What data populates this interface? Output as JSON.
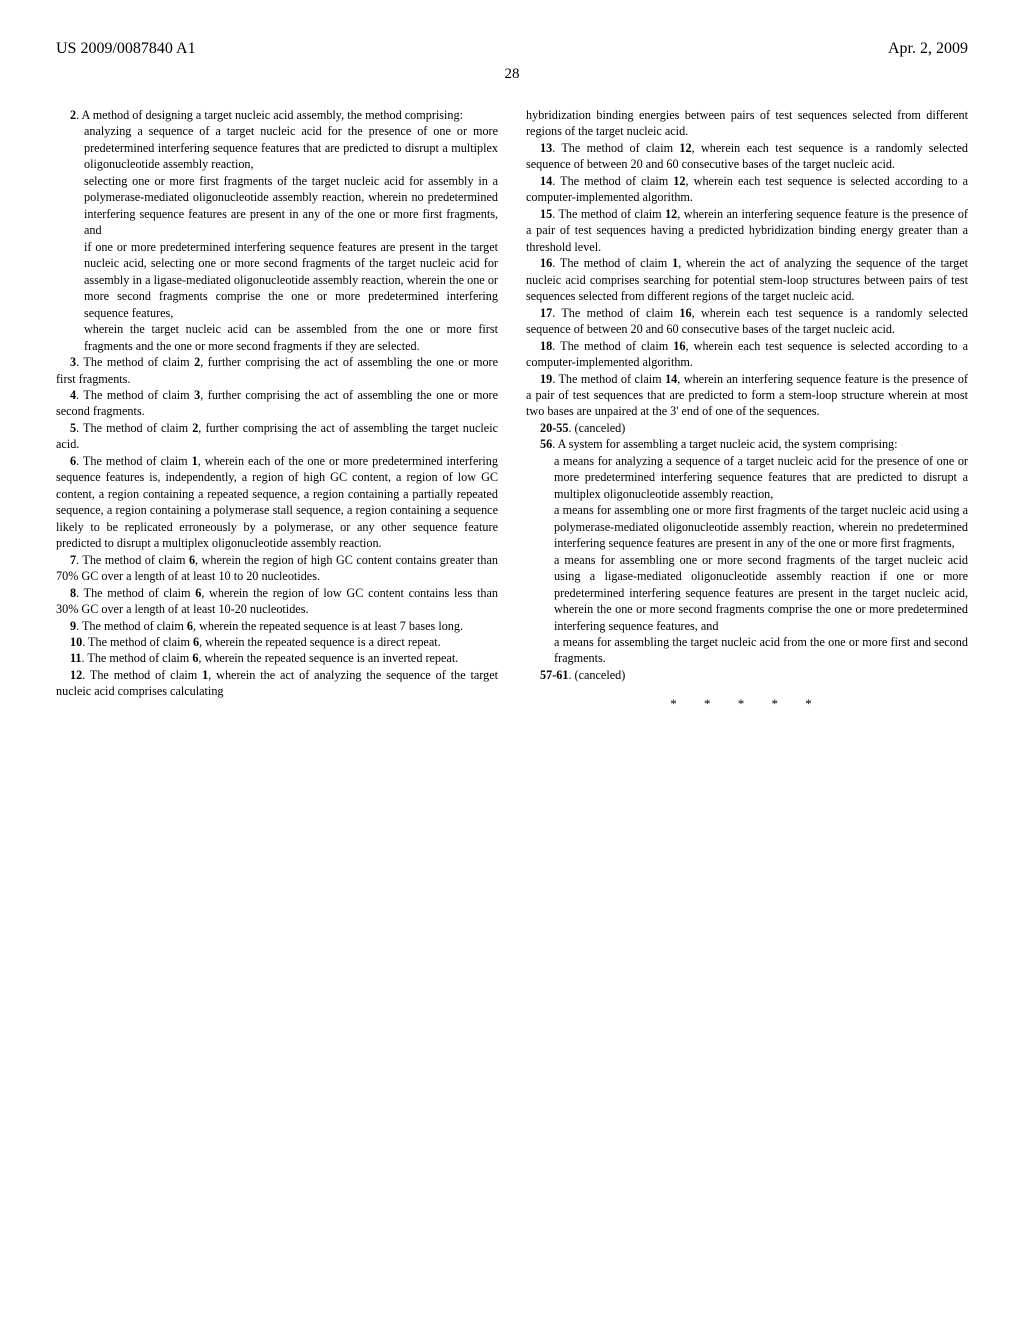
{
  "header": {
    "pub_number": "US 2009/0087840 A1",
    "pub_date": "Apr. 2, 2009"
  },
  "page_number": "28",
  "col1": {
    "c2_lead": "2",
    "c2_body": ". A method of designing a target nucleic acid assembly, the method comprising:",
    "c2_s1": "analyzing a sequence of a target nucleic acid for the presence of one or more predetermined interfering sequence features that are predicted to disrupt a multiplex oligonucleotide assembly reaction,",
    "c2_s2": "selecting one or more first fragments of the target nucleic acid for assembly in a polymerase-mediated oligonucleotide assembly reaction, wherein no predetermined interfering sequence features are present in any of the one or more first fragments, and",
    "c2_s3": "if one or more predetermined interfering sequence features are present in the target nucleic acid, selecting one or more second fragments of the target nucleic acid for assembly in a ligase-mediated oligonucleotide assembly reaction, wherein the one or more second fragments comprise the one or more predetermined interfering sequence features,",
    "c2_s4": "wherein the target nucleic acid can be assembled from the one or more first fragments and the one or more second fragments if they are selected.",
    "c3_lead": "3",
    "c3_mid": ". The method of claim ",
    "c3_ref": "2",
    "c3_tail": ", further comprising the act of assembling the one or more first fragments.",
    "c4_lead": "4",
    "c4_mid": ". The method of claim ",
    "c4_ref": "3",
    "c4_tail": ", further comprising the act of assembling the one or more second fragments.",
    "c5_lead": "5",
    "c5_mid": ". The method of claim ",
    "c5_ref": "2",
    "c5_tail": ", further comprising the act of assembling the target nucleic acid.",
    "c6_lead": "6",
    "c6_mid": ". The method of claim ",
    "c6_ref": "1",
    "c6_tail": ", wherein each of the one or more predetermined interfering sequence features is, independently, a region of high GC content, a region of low GC content, a region containing a repeated sequence, a region containing a partially repeated sequence, a region containing a polymerase stall sequence, a region containing a sequence likely to be replicated erroneously by a polymerase, or any other sequence feature predicted to disrupt a multiplex oligonucleotide assembly reaction.",
    "c7_lead": "7",
    "c7_mid": ". The method of claim ",
    "c7_ref": "6",
    "c7_tail": ", wherein the region of high GC content contains greater than 70% GC over a length of at least 10 to 20 nucleotides.",
    "c8_lead": "8",
    "c8_mid": ". The method of claim ",
    "c8_ref": "6",
    "c8_tail": ", wherein the region of low GC content contains less than 30% GC over a length of at least 10-20 nucleotides.",
    "c9_lead": "9",
    "c9_mid": ". The method of claim ",
    "c9_ref": "6",
    "c9_tail": ", wherein the repeated sequence is at least 7 bases long.",
    "c10_lead": "10",
    "c10_mid": ". The method of claim ",
    "c10_ref": "6",
    "c10_tail": ", wherein the repeated sequence is a direct repeat.",
    "c11_lead": "11",
    "c11_mid": ". The method of claim ",
    "c11_ref": "6",
    "c11_tail": ", wherein the repeated sequence is an inverted repeat.",
    "c12_lead": "12",
    "c12_mid": ". The method of claim ",
    "c12_ref": "1",
    "c12_tail": ", wherein the act of analyzing the sequence of the target nucleic acid comprises calculating"
  },
  "col2": {
    "c12_cont": "hybridization binding energies between pairs of test sequences selected from different regions of the target nucleic acid.",
    "c13_lead": "13",
    "c13_mid": ". The method of claim ",
    "c13_ref": "12",
    "c13_tail": ", wherein each test sequence is a randomly selected sequence of between 20 and 60 consecutive bases of the target nucleic acid.",
    "c14_lead": "14",
    "c14_mid": ". The method of claim ",
    "c14_ref": "12",
    "c14_tail": ", wherein each test sequence is selected according to a computer-implemented algorithm.",
    "c15_lead": "15",
    "c15_mid": ". The method of claim ",
    "c15_ref": "12",
    "c15_tail": ", wherein an interfering sequence feature is the presence of a pair of test sequences having a predicted hybridization binding energy greater than a threshold level.",
    "c16_lead": "16",
    "c16_mid": ". The method of claim ",
    "c16_ref": "1",
    "c16_tail": ", wherein the act of analyzing the sequence of the target nucleic acid comprises searching for potential stem-loop structures between pairs of test sequences selected from different regions of the target nucleic acid.",
    "c17_lead": "17",
    "c17_mid": ". The method of claim ",
    "c17_ref": "16",
    "c17_tail": ", wherein each test sequence is a randomly selected sequence of between 20 and 60 consecutive bases of the target nucleic acid.",
    "c18_lead": "18",
    "c18_mid": ". The method of claim ",
    "c18_ref": "16",
    "c18_tail": ", wherein each test sequence is selected according to a computer-implemented algorithm.",
    "c19_lead": "19",
    "c19_mid": ". The method of claim ",
    "c19_ref": "14",
    "c19_tail": ", wherein an interfering sequence feature is the presence of a pair of test sequences that are predicted to form a stem-loop structure wherein at most two bases are unpaired at the 3' end of one of the sequences.",
    "c20_lead": "20-55",
    "c20_tail": ". (canceled)",
    "c56_lead": "56",
    "c56_body": ". A system for assembling a target nucleic acid, the system comprising:",
    "c56_s1": "a means for analyzing a sequence of a target nucleic acid for the presence of one or more predetermined interfering sequence features that are predicted to disrupt a multiplex oligonucleotide assembly reaction,",
    "c56_s2": "a means for assembling one or more first fragments of the target nucleic acid using a polymerase-mediated oligonucleotide assembly reaction, wherein no predetermined interfering sequence features are present in any of the one or more first fragments,",
    "c56_s3": "a means for assembling one or more second fragments of the target nucleic acid using a ligase-mediated oligonucleotide assembly reaction if one or more predetermined interfering sequence features are present in the target nucleic acid, wherein the one or more second fragments comprise the one or more predetermined interfering sequence features, and",
    "c56_s4": "a means for assembling the target nucleic acid from the one or more first and second fragments.",
    "c57_lead": "57-61",
    "c57_tail": ". (canceled)",
    "end_marks": "* * * * *"
  }
}
